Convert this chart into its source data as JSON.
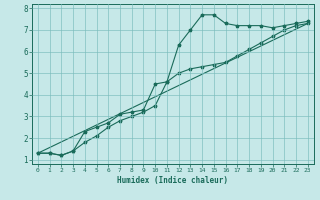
{
  "title": "",
  "xlabel": "Humidex (Indice chaleur)",
  "bg_color": "#c6e8e8",
  "line_color": "#1a6b5a",
  "grid_color": "#7bbcbc",
  "xlim": [
    -0.5,
    23.5
  ],
  "ylim": [
    0.8,
    8.2
  ],
  "xticks": [
    0,
    1,
    2,
    3,
    4,
    5,
    6,
    7,
    8,
    9,
    10,
    11,
    12,
    13,
    14,
    15,
    16,
    17,
    18,
    19,
    20,
    21,
    22,
    23
  ],
  "yticks": [
    1,
    2,
    3,
    4,
    5,
    6,
    7,
    8
  ],
  "line1_x": [
    0,
    1,
    2,
    3,
    4,
    5,
    6,
    7,
    8,
    9,
    10,
    11,
    12,
    13,
    14,
    15,
    16,
    17,
    18,
    19,
    20,
    21,
    22,
    23
  ],
  "line1_y": [
    1.3,
    1.3,
    1.2,
    1.4,
    2.3,
    2.5,
    2.7,
    3.1,
    3.2,
    3.3,
    4.5,
    4.6,
    6.3,
    7.0,
    7.7,
    7.7,
    7.3,
    7.2,
    7.2,
    7.2,
    7.1,
    7.2,
    7.3,
    7.4
  ],
  "line2_x": [
    0,
    1,
    2,
    3,
    4,
    5,
    6,
    7,
    8,
    9,
    10,
    11,
    12,
    13,
    14,
    15,
    16,
    17,
    18,
    19,
    20,
    21,
    22,
    23
  ],
  "line2_y": [
    1.3,
    1.3,
    1.2,
    1.4,
    1.8,
    2.1,
    2.5,
    2.8,
    3.0,
    3.2,
    3.5,
    4.6,
    5.0,
    5.2,
    5.3,
    5.4,
    5.5,
    5.8,
    6.1,
    6.4,
    6.7,
    7.0,
    7.2,
    7.3
  ],
  "line3_x": [
    0,
    23
  ],
  "line3_y": [
    1.3,
    7.3
  ]
}
